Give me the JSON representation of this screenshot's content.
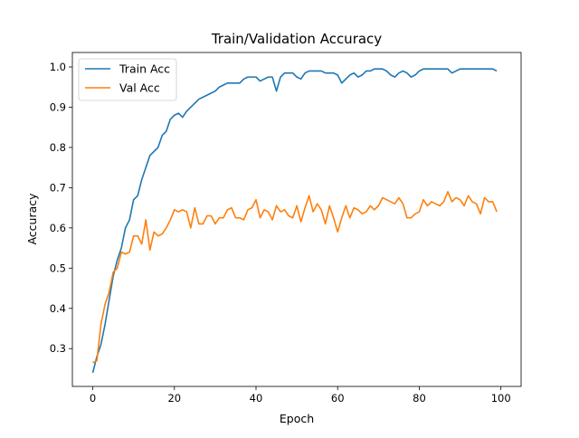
{
  "chart_data": {
    "type": "line",
    "title": "Train/Validation Accuracy",
    "xlabel": "Epoch",
    "ylabel": "Accuracy",
    "xlim": [
      -5,
      104.95
    ],
    "ylim": [
      0.206,
      1.036
    ],
    "xticks": [
      0,
      20,
      40,
      60,
      80,
      100
    ],
    "yticks": [
      0.3,
      0.4,
      0.5,
      0.6,
      0.7,
      0.8,
      0.9,
      1.0
    ],
    "xtick_labels": [
      "0",
      "20",
      "40",
      "60",
      "80",
      "100"
    ],
    "ytick_labels": [
      "0.3",
      "0.4",
      "0.5",
      "0.6",
      "0.7",
      "0.8",
      "0.9",
      "1.0"
    ],
    "grid": false,
    "legend_position": "top-left",
    "x": [
      0,
      1,
      2,
      3,
      4,
      5,
      6,
      7,
      8,
      9,
      10,
      11,
      12,
      13,
      14,
      15,
      16,
      17,
      18,
      19,
      20,
      21,
      22,
      23,
      24,
      25,
      26,
      27,
      28,
      29,
      30,
      31,
      32,
      33,
      34,
      35,
      36,
      37,
      38,
      39,
      40,
      41,
      42,
      43,
      44,
      45,
      46,
      47,
      48,
      49,
      50,
      51,
      52,
      53,
      54,
      55,
      56,
      57,
      58,
      59,
      60,
      61,
      62,
      63,
      64,
      65,
      66,
      67,
      68,
      69,
      70,
      71,
      72,
      73,
      74,
      75,
      76,
      77,
      78,
      79,
      80,
      81,
      82,
      83,
      84,
      85,
      86,
      87,
      88,
      89,
      90,
      91,
      92,
      93,
      94,
      95,
      96,
      97,
      98,
      99
    ],
    "series": [
      {
        "name": "Train Acc",
        "color": "#1f77b4",
        "values": [
          0.24,
          0.28,
          0.31,
          0.36,
          0.42,
          0.48,
          0.52,
          0.55,
          0.6,
          0.62,
          0.67,
          0.68,
          0.72,
          0.75,
          0.78,
          0.79,
          0.8,
          0.83,
          0.84,
          0.87,
          0.88,
          0.885,
          0.875,
          0.89,
          0.9,
          0.91,
          0.92,
          0.925,
          0.93,
          0.935,
          0.94,
          0.95,
          0.955,
          0.96,
          0.96,
          0.96,
          0.96,
          0.97,
          0.975,
          0.975,
          0.975,
          0.965,
          0.97,
          0.975,
          0.975,
          0.94,
          0.975,
          0.985,
          0.985,
          0.985,
          0.975,
          0.97,
          0.985,
          0.99,
          0.99,
          0.99,
          0.99,
          0.985,
          0.985,
          0.985,
          0.98,
          0.96,
          0.97,
          0.98,
          0.985,
          0.975,
          0.98,
          0.99,
          0.99,
          0.995,
          0.995,
          0.995,
          0.99,
          0.98,
          0.975,
          0.985,
          0.99,
          0.985,
          0.975,
          0.98,
          0.99,
          0.995,
          0.995,
          0.995,
          0.995,
          0.995,
          0.995,
          0.995,
          0.985,
          0.99,
          0.995,
          0.995,
          0.995,
          0.995,
          0.995,
          0.995,
          0.995,
          0.995,
          0.995,
          0.99
        ]
      },
      {
        "name": "Val Acc",
        "color": "#ff7f0e",
        "values": [
          0.265,
          0.27,
          0.36,
          0.41,
          0.44,
          0.49,
          0.5,
          0.54,
          0.535,
          0.54,
          0.58,
          0.58,
          0.56,
          0.62,
          0.545,
          0.59,
          0.58,
          0.585,
          0.6,
          0.62,
          0.645,
          0.64,
          0.645,
          0.64,
          0.6,
          0.65,
          0.61,
          0.61,
          0.63,
          0.63,
          0.61,
          0.625,
          0.625,
          0.645,
          0.65,
          0.625,
          0.625,
          0.62,
          0.645,
          0.65,
          0.67,
          0.625,
          0.645,
          0.64,
          0.62,
          0.655,
          0.64,
          0.645,
          0.63,
          0.625,
          0.655,
          0.615,
          0.65,
          0.68,
          0.64,
          0.66,
          0.645,
          0.61,
          0.655,
          0.625,
          0.59,
          0.625,
          0.655,
          0.625,
          0.65,
          0.645,
          0.635,
          0.64,
          0.655,
          0.645,
          0.655,
          0.675,
          0.67,
          0.665,
          0.66,
          0.675,
          0.66,
          0.625,
          0.625,
          0.635,
          0.64,
          0.67,
          0.655,
          0.665,
          0.66,
          0.655,
          0.665,
          0.69,
          0.665,
          0.675,
          0.67,
          0.655,
          0.68,
          0.665,
          0.66,
          0.635,
          0.675,
          0.665,
          0.665,
          0.64
        ]
      }
    ]
  }
}
